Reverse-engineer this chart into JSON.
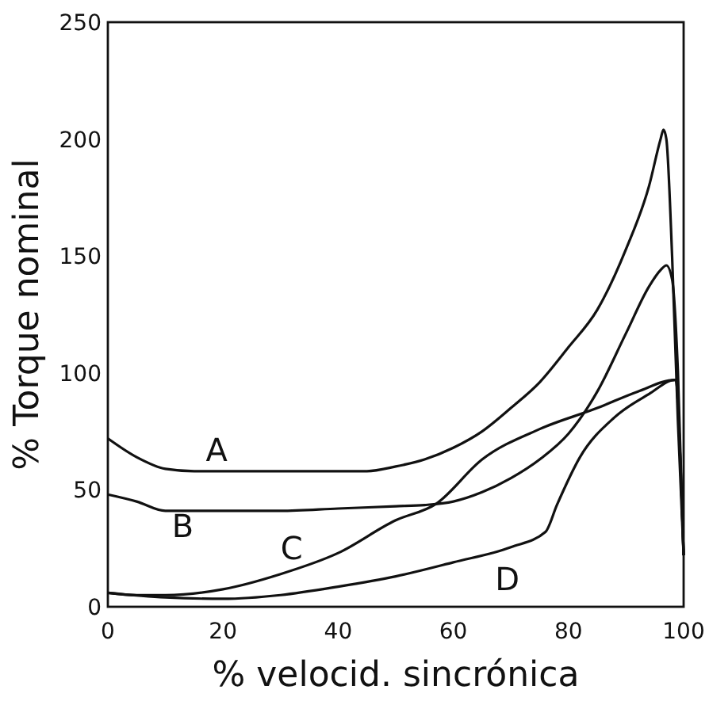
{
  "chart_data": {
    "type": "line",
    "xlabel": "% velocid. sincrónica",
    "ylabel": "% Torque nominal",
    "xlim": [
      0,
      100
    ],
    "ylim": [
      0,
      250
    ],
    "xticks": [
      0,
      20,
      40,
      60,
      80,
      100
    ],
    "yticks": [
      0,
      50,
      100,
      150,
      200,
      250
    ],
    "grid": false,
    "marker": "none",
    "line_style": "solid",
    "series": [
      {
        "name": "A",
        "color": "#111111",
        "x": [
          0,
          5,
          10,
          15,
          20,
          30,
          40,
          45,
          50,
          55,
          60,
          65,
          70,
          75,
          80,
          85,
          90,
          94,
          96,
          96.5,
          97,
          98,
          99,
          100
        ],
        "values": [
          72,
          64,
          59,
          58,
          58,
          58,
          58,
          58,
          60,
          63,
          68,
          75,
          85,
          96,
          111,
          127,
          153,
          180,
          200,
          204,
          200,
          150,
          80,
          22
        ]
      },
      {
        "name": "B",
        "color": "#111111",
        "x": [
          0,
          5,
          10,
          20,
          30,
          40,
          50,
          55,
          60,
          65,
          70,
          75,
          80,
          85,
          90,
          94,
          96,
          97,
          98,
          99,
          100
        ],
        "values": [
          48,
          45,
          41,
          41,
          41,
          42,
          43,
          43.5,
          45,
          49,
          55,
          63,
          74,
          92,
          117,
          137,
          144,
          146,
          140,
          101,
          22
        ]
      },
      {
        "name": "C",
        "color": "#111111",
        "x": [
          0,
          5,
          10,
          20,
          30,
          40,
          50,
          57,
          65,
          75,
          85,
          92,
          98.5,
          100
        ],
        "values": [
          6,
          5,
          5,
          7.5,
          14,
          23,
          37,
          44,
          63,
          76,
          85,
          92,
          97,
          22
        ]
      },
      {
        "name": "D",
        "color": "#111111",
        "x": [
          0,
          10,
          20,
          30,
          40,
          50,
          60,
          70,
          76,
          78,
          82,
          88,
          94,
          98.5,
          100
        ],
        "values": [
          6,
          4,
          3.4,
          5,
          8.6,
          13,
          19,
          25.5,
          32,
          43.6,
          64,
          81,
          91,
          97,
          22
        ]
      }
    ]
  }
}
